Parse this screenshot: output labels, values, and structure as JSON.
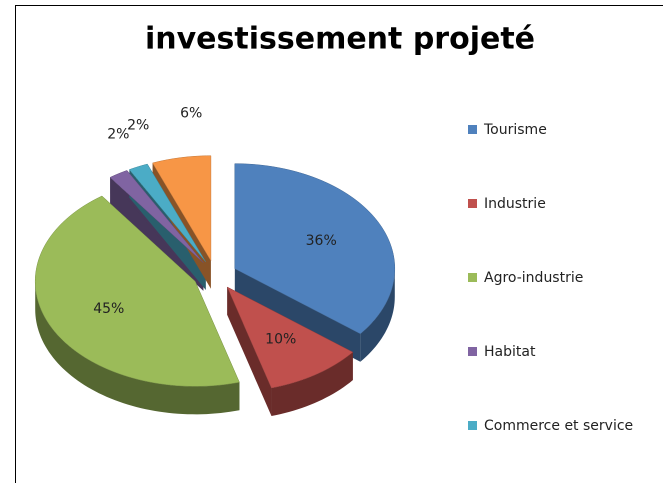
{
  "chart_data": {
    "type": "pie",
    "title": "investissement projeté",
    "categories": [
      "Tourisme",
      "Industrie",
      "Agro-industrie",
      "Habitat",
      "Commerce et service",
      null
    ],
    "values": [
      36,
      10,
      45,
      2,
      2,
      6
    ],
    "value_labels": [
      "36%",
      "10%",
      "45%",
      "2%",
      "2%",
      "6%"
    ],
    "colors": [
      "#4f81bd",
      "#c0504d",
      "#9bbb59",
      "#8064a2",
      "#4bacc6",
      "#f79646"
    ],
    "legend": "right"
  }
}
